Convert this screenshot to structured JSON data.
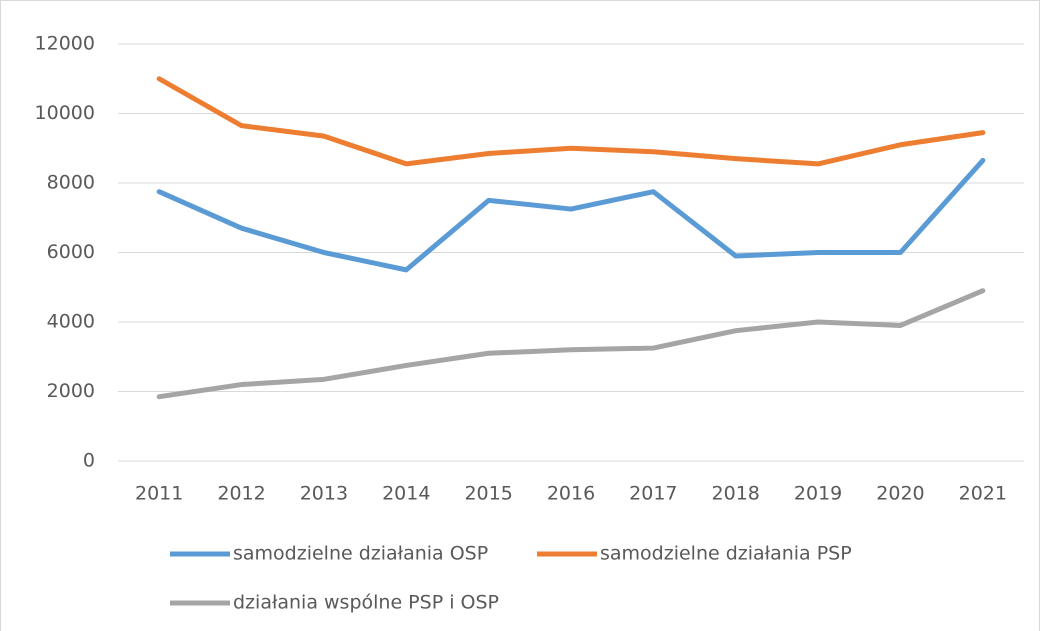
{
  "chart_data": {
    "type": "line",
    "categories": [
      "2011",
      "2012",
      "2013",
      "2014",
      "2015",
      "2016",
      "2017",
      "2018",
      "2019",
      "2020",
      "2021"
    ],
    "series": [
      {
        "name": "samodzielne działania OSP",
        "color": "#5b9bd5",
        "values": [
          7750,
          6700,
          6000,
          5500,
          7500,
          7250,
          7750,
          5900,
          6000,
          6000,
          8650
        ]
      },
      {
        "name": "samodzielne działania PSP",
        "color": "#ed7d31",
        "values": [
          11000,
          9650,
          9350,
          8550,
          8850,
          9000,
          8900,
          8700,
          8550,
          9100,
          9450
        ]
      },
      {
        "name": "działania wspólne PSP i OSP",
        "color": "#a5a5a5",
        "values": [
          1850,
          2200,
          2350,
          2750,
          3100,
          3200,
          3250,
          3750,
          4000,
          3900,
          4900
        ]
      }
    ],
    "ylim": [
      0,
      12000
    ],
    "yticks": [
      0,
      2000,
      4000,
      6000,
      8000,
      10000,
      12000
    ],
    "grid": true,
    "legend": "bottom"
  }
}
